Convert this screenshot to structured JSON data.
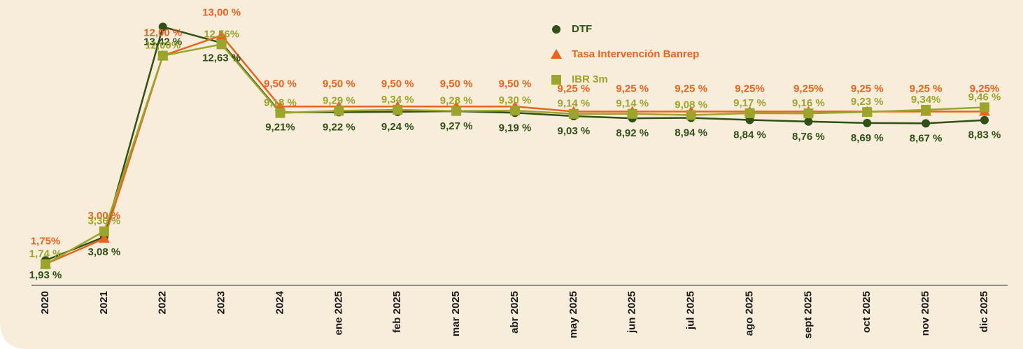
{
  "chart_data": {
    "type": "line",
    "categories": [
      "2020",
      "2021",
      "2022",
      "2023",
      "2024",
      "ene 2025",
      "feb 2025",
      "mar 2025",
      "abr 2025",
      "may 2025",
      "jun 2025",
      "jul 2025",
      "ago 2025",
      "sept 2025",
      "oct 2025",
      "nov 2025",
      "dic 2025"
    ],
    "series": [
      {
        "name": "DTF",
        "color": "#2f5117",
        "marker": "circle",
        "values": [
          1.93,
          3.08,
          13.42,
          12.63,
          9.21,
          9.22,
          9.24,
          9.27,
          9.19,
          9.03,
          8.92,
          8.94,
          8.84,
          8.76,
          8.69,
          8.67,
          8.83
        ],
        "value_labels": [
          "1,93 %",
          "3,08 %",
          "13,42 %",
          "12,63 %",
          "9,21%",
          "9,22 %",
          "9,24 %",
          "9,27 %",
          "9,19 %",
          "9,03 %",
          "8,92 %",
          "8,94 %",
          "8,84 %",
          "8,76 %",
          "8,69 %",
          "8,67 %",
          "8,83 %"
        ]
      },
      {
        "name": "Tasa Intervención Banrep",
        "color": "#e8641e",
        "marker": "triangle",
        "values": [
          1.75,
          3.0,
          12.0,
          13.0,
          9.5,
          9.5,
          9.5,
          9.5,
          9.5,
          9.25,
          9.25,
          9.25,
          9.25,
          9.25,
          9.25,
          9.25,
          9.25
        ],
        "value_labels": [
          "1,75%",
          "3,00 %",
          "12,00 %",
          "13,00 %",
          "9,50 %",
          "9,50 %",
          "9,50 %",
          "9,50 %",
          "9,50 %",
          "9,25 %",
          "9,25 %",
          "9,25 %",
          "9,25%",
          "9,25%",
          "9,25 %",
          "9,25 %",
          "9,25%"
        ]
      },
      {
        "name": "IBR 3m",
        "color": "#9ba52c",
        "marker": "square",
        "values": [
          1.74,
          3.36,
          12.0,
          12.56,
          9.18,
          9.29,
          9.34,
          9.28,
          9.3,
          9.14,
          9.14,
          9.08,
          9.17,
          9.16,
          9.23,
          9.34,
          9.46
        ],
        "value_labels": [
          "1,74 %",
          "3,36 %",
          "12,00%",
          "12,56%",
          "9,18 %",
          "9,29 %",
          "9,34 %",
          "9,28 %",
          "9,30 %",
          "9,14 %",
          "9,14 %",
          "9,08 %",
          "9,17 %",
          "9,16 %",
          "9,23 %",
          "9,34%",
          "9,46 %"
        ]
      }
    ],
    "ylim": [
      0.7,
      14.5
    ]
  }
}
